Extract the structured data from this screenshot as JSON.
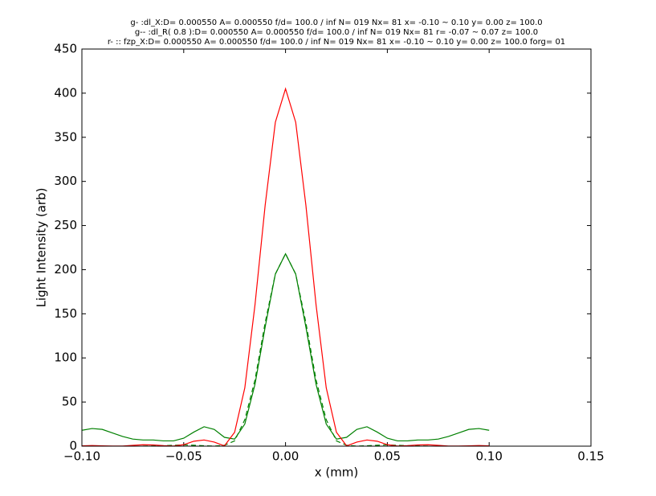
{
  "chart_data": {
    "type": "line",
    "title": [
      "g- :dl_X:D= 0.000550 A= 0.000550 f/d= 100.0 / inf N= 019 Nx= 81 x= -0.10 ~ 0.10 y= 0.00 z= 100.0",
      "g-- :dl_R( 0.8 ):D= 0.000550 A= 0.000550 f/d= 100.0 / inf N= 019 Nx= 81 r= -0.07 ~ 0.07 z= 100.0",
      "r- :: fzp_X:D= 0.000550 A= 0.000550 f/d= 100.0 / inf N= 019 Nx= 81 x= -0.10 ~ 0.10 y= 0.00 z= 100.0 forg= 01"
    ],
    "x_label": "x (mm)",
    "y_label": "Light Intensity (arb)",
    "xlim": [
      -0.1,
      0.15
    ],
    "ylim": [
      0,
      450
    ],
    "xticks": [
      {
        "value": -0.1,
        "label": "−0.10"
      },
      {
        "value": -0.05,
        "label": "−0.05"
      },
      {
        "value": 0,
        "label": "0.00"
      },
      {
        "value": 0.05,
        "label": "0.05"
      },
      {
        "value": 0.1,
        "label": "0.10"
      },
      {
        "value": 0.15,
        "label": "0.15"
      }
    ],
    "yticks": [
      0,
      50,
      100,
      150,
      200,
      250,
      300,
      350,
      400,
      450
    ],
    "grid": false,
    "series": [
      {
        "color": "#008000",
        "dash": false,
        "x": [
          -0.1,
          -0.095,
          -0.09,
          -0.085,
          -0.08,
          -0.075,
          -0.07,
          -0.065,
          -0.06,
          -0.055,
          -0.05,
          -0.045,
          -0.04,
          -0.035,
          -0.03,
          -0.025,
          -0.02,
          -0.015,
          -0.01,
          -0.005,
          0,
          0.005,
          0.01,
          0.015,
          0.02,
          0.025,
          0.03,
          0.035,
          0.04,
          0.045,
          0.05,
          0.055,
          0.06,
          0.065,
          0.07,
          0.075,
          0.08,
          0.085,
          0.09,
          0.095,
          0.1
        ],
        "values": [
          18,
          20,
          19,
          15,
          11,
          8,
          7,
          7,
          6,
          6,
          9,
          16,
          22,
          19,
          10,
          8,
          25,
          70,
          135,
          195,
          218,
          195,
          135,
          70,
          25,
          8,
          10,
          19,
          22,
          16,
          9,
          6,
          6,
          7,
          7,
          8,
          11,
          15,
          19,
          20,
          18
        ]
      },
      {
        "color": "#008000",
        "dash": true,
        "x": [
          -0.07,
          -0.065,
          -0.06,
          -0.055,
          -0.05,
          -0.045,
          -0.04,
          -0.035,
          -0.03,
          -0.025,
          -0.02,
          -0.015,
          -0.01,
          -0.005,
          0,
          0.005,
          0.01,
          0.015,
          0.02,
          0.025,
          0.03,
          0.035,
          0.04,
          0.045,
          0.05,
          0.055,
          0.06,
          0.065,
          0.07
        ],
        "values": [
          0,
          0.2,
          0.5,
          1,
          1.5,
          1,
          0.5,
          0,
          1,
          6,
          30,
          75,
          140,
          195,
          218,
          195,
          140,
          75,
          30,
          6,
          1,
          0,
          0.5,
          1,
          1.5,
          1,
          0.5,
          0.2,
          0
        ]
      },
      {
        "color": "#ff0000",
        "dash": false,
        "x": [
          -0.1,
          -0.095,
          -0.09,
          -0.085,
          -0.08,
          -0.075,
          -0.07,
          -0.065,
          -0.06,
          -0.055,
          -0.05,
          -0.045,
          -0.04,
          -0.035,
          -0.03,
          -0.025,
          -0.02,
          -0.015,
          -0.01,
          -0.005,
          0,
          0.005,
          0.01,
          0.015,
          0.02,
          0.025,
          0.03,
          0.035,
          0.04,
          0.045,
          0.05,
          0.055,
          0.06,
          0.065,
          0.07,
          0.075,
          0.08,
          0.085,
          0.09,
          0.095,
          0.1
        ],
        "values": [
          0.4,
          0.7,
          0.4,
          0.1,
          0.1,
          0.9,
          1.6,
          1.4,
          0.6,
          0.1,
          1.7,
          5.6,
          7,
          4.6,
          0.3,
          15.7,
          66,
          160,
          273,
          367,
          405,
          367,
          273,
          160,
          66,
          15.7,
          0.3,
          4.6,
          7,
          5.6,
          1.7,
          0.1,
          0.6,
          1.4,
          1.6,
          0.9,
          0.1,
          0.1,
          0.4,
          0.7,
          0.4
        ]
      }
    ]
  }
}
